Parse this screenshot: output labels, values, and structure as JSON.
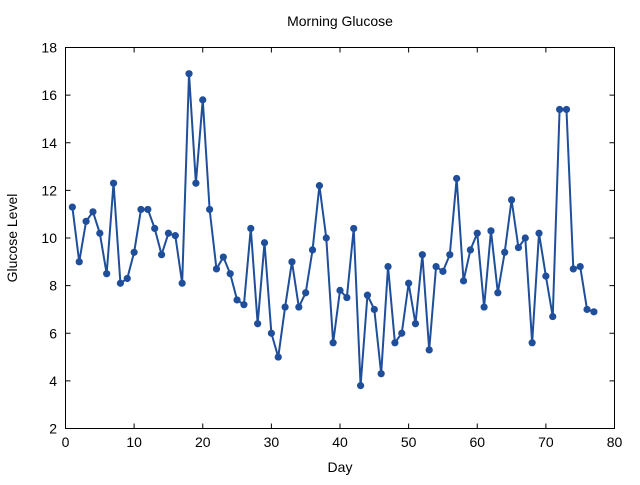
{
  "chart_data": {
    "type": "line",
    "title": "Morning Glucose",
    "xlabel": "Day",
    "ylabel": "Glucose Level",
    "xlim": [
      0,
      80
    ],
    "ylim": [
      2,
      18
    ],
    "xticks": [
      0,
      10,
      20,
      30,
      40,
      50,
      60,
      70,
      80
    ],
    "yticks": [
      2,
      4,
      6,
      8,
      10,
      12,
      14,
      16,
      18
    ],
    "grid": false,
    "legend": "none",
    "color": "#1f4e9b",
    "marker": "circle",
    "series": [
      {
        "x": [
          1,
          2,
          3,
          4,
          5,
          6,
          7,
          8,
          9,
          10,
          11,
          12,
          13,
          14,
          15,
          16,
          17,
          18,
          19,
          20,
          21,
          22,
          23,
          24,
          25,
          26,
          27,
          28,
          29,
          30,
          31,
          32,
          33,
          34,
          35,
          36,
          37,
          38,
          39,
          40,
          41,
          42,
          43,
          44,
          45,
          46,
          47,
          48,
          49,
          50,
          51,
          52,
          53,
          54,
          55,
          56,
          57,
          58,
          59,
          60,
          61,
          62,
          63,
          64,
          65,
          66,
          67,
          68,
          69,
          70,
          71,
          72,
          73,
          74,
          75,
          76,
          77
        ],
        "y": [
          11.3,
          9.0,
          10.7,
          11.1,
          10.2,
          8.5,
          12.3,
          8.1,
          8.3,
          9.4,
          11.2,
          11.2,
          10.4,
          9.3,
          10.2,
          10.1,
          8.1,
          16.9,
          12.3,
          15.8,
          11.2,
          8.7,
          9.2,
          8.5,
          7.4,
          7.2,
          10.4,
          6.4,
          9.8,
          6.0,
          5.0,
          7.1,
          9.0,
          7.1,
          7.7,
          9.5,
          12.2,
          10.0,
          5.6,
          7.8,
          7.5,
          10.4,
          3.8,
          7.6,
          7.0,
          4.3,
          8.8,
          5.6,
          6.0,
          8.1,
          6.4,
          9.3,
          5.3,
          8.8,
          8.6,
          9.3,
          12.5,
          8.2,
          9.5,
          10.2,
          7.1,
          10.3,
          7.7,
          9.4,
          11.6,
          9.6,
          10.0,
          5.6,
          10.2,
          8.4,
          6.7,
          15.4,
          15.4,
          8.7,
          8.8,
          7.0,
          6.9
        ]
      }
    ]
  }
}
